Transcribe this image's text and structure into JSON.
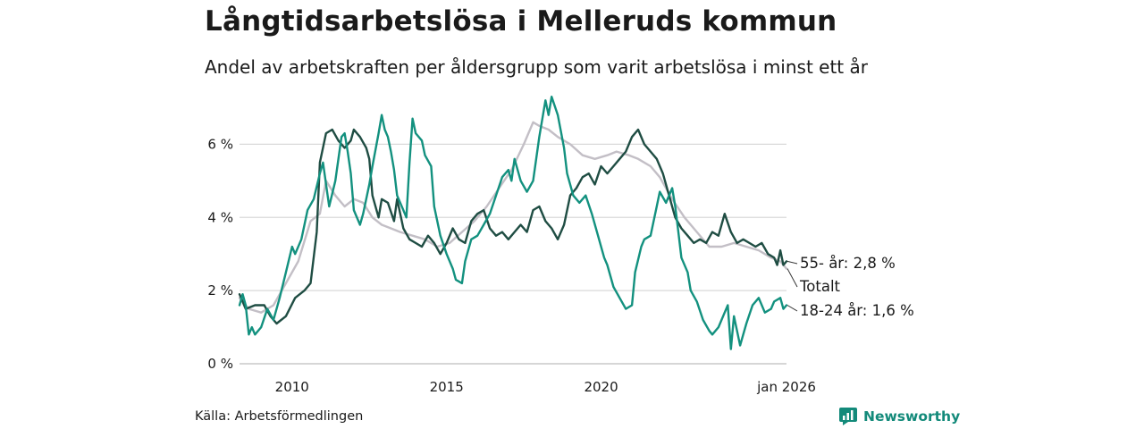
{
  "header": {
    "title": "Långtidsarbetslösa i Melleruds kommun",
    "subtitle": "Andel av arbetskraften per åldersgrupp som varit arbetslösa i minst ett år"
  },
  "footer": {
    "source": "Källa: Arbetsförmedlingen",
    "brand": "Newsworthy"
  },
  "colors": {
    "totalt": "#c3bfc6",
    "age_55": "#1f4d43",
    "age_18_24": "#13917f",
    "grid": "#d9d9d9",
    "brand": "#138a7a"
  },
  "chart_data": {
    "type": "line",
    "title": "Långtidsarbetslösa i Melleruds kommun",
    "xlabel": "",
    "ylabel": "",
    "xlim": [
      2008.3,
      2026.0
    ],
    "ylim": [
      0,
      7.5
    ],
    "grid": true,
    "y_ticks": [
      {
        "value": 0,
        "label": "0 %"
      },
      {
        "value": 2,
        "label": "2 %"
      },
      {
        "value": 4,
        "label": "4 %"
      },
      {
        "value": 6,
        "label": "6 %"
      }
    ],
    "x_ticks": [
      {
        "value": 2010,
        "label": "2010"
      },
      {
        "value": 2015,
        "label": "2015"
      },
      {
        "value": 2020,
        "label": "2020"
      },
      {
        "value": 2026,
        "label": "jan 2026"
      }
    ],
    "series": [
      {
        "name": "Totalt",
        "end_label": "Totalt",
        "color_key": "totalt",
        "points": [
          [
            2008.3,
            1.8
          ],
          [
            2008.6,
            1.5
          ],
          [
            2009.0,
            1.4
          ],
          [
            2009.4,
            1.6
          ],
          [
            2009.8,
            2.2
          ],
          [
            2010.2,
            2.8
          ],
          [
            2010.6,
            3.9
          ],
          [
            2010.9,
            4.1
          ],
          [
            2011.1,
            5.0
          ],
          [
            2011.4,
            4.6
          ],
          [
            2011.7,
            4.3
          ],
          [
            2012.0,
            4.5
          ],
          [
            2012.3,
            4.4
          ],
          [
            2012.6,
            4.0
          ],
          [
            2012.9,
            3.8
          ],
          [
            2013.2,
            3.7
          ],
          [
            2013.5,
            3.6
          ],
          [
            2013.9,
            3.5
          ],
          [
            2014.3,
            3.4
          ],
          [
            2014.7,
            3.2
          ],
          [
            2015.1,
            3.3
          ],
          [
            2015.5,
            3.6
          ],
          [
            2015.9,
            3.9
          ],
          [
            2016.3,
            4.3
          ],
          [
            2016.7,
            4.8
          ],
          [
            2017.1,
            5.3
          ],
          [
            2017.5,
            6.0
          ],
          [
            2017.8,
            6.6
          ],
          [
            2018.0,
            6.5
          ],
          [
            2018.3,
            6.4
          ],
          [
            2018.6,
            6.2
          ],
          [
            2019.0,
            6.0
          ],
          [
            2019.4,
            5.7
          ],
          [
            2019.8,
            5.6
          ],
          [
            2020.2,
            5.7
          ],
          [
            2020.5,
            5.8
          ],
          [
            2020.9,
            5.7
          ],
          [
            2021.2,
            5.6
          ],
          [
            2021.6,
            5.4
          ],
          [
            2021.9,
            5.1
          ],
          [
            2022.3,
            4.5
          ],
          [
            2022.7,
            4.0
          ],
          [
            2023.1,
            3.6
          ],
          [
            2023.5,
            3.2
          ],
          [
            2023.9,
            3.2
          ],
          [
            2024.3,
            3.3
          ],
          [
            2024.7,
            3.2
          ],
          [
            2025.1,
            3.1
          ],
          [
            2025.5,
            2.9
          ],
          [
            2025.8,
            2.8
          ],
          [
            2026.0,
            2.6
          ]
        ]
      },
      {
        "name": "55- år",
        "end_label": "55- år: 2,8 %",
        "color_key": "age_55",
        "points": [
          [
            2008.3,
            1.9
          ],
          [
            2008.5,
            1.5
          ],
          [
            2008.8,
            1.6
          ],
          [
            2009.1,
            1.6
          ],
          [
            2009.3,
            1.3
          ],
          [
            2009.5,
            1.1
          ],
          [
            2009.8,
            1.3
          ],
          [
            2010.1,
            1.8
          ],
          [
            2010.4,
            2.0
          ],
          [
            2010.6,
            2.2
          ],
          [
            2010.8,
            3.6
          ],
          [
            2010.9,
            5.5
          ],
          [
            2011.1,
            6.3
          ],
          [
            2011.3,
            6.4
          ],
          [
            2011.5,
            6.1
          ],
          [
            2011.7,
            5.9
          ],
          [
            2011.9,
            6.1
          ],
          [
            2012.0,
            6.4
          ],
          [
            2012.2,
            6.2
          ],
          [
            2012.4,
            5.9
          ],
          [
            2012.5,
            5.6
          ],
          [
            2012.6,
            4.6
          ],
          [
            2012.8,
            4.0
          ],
          [
            2012.9,
            4.5
          ],
          [
            2013.1,
            4.4
          ],
          [
            2013.3,
            3.9
          ],
          [
            2013.4,
            4.5
          ],
          [
            2013.6,
            3.7
          ],
          [
            2013.8,
            3.4
          ],
          [
            2014.0,
            3.3
          ],
          [
            2014.2,
            3.2
          ],
          [
            2014.4,
            3.5
          ],
          [
            2014.6,
            3.3
          ],
          [
            2014.8,
            3.0
          ],
          [
            2015.0,
            3.3
          ],
          [
            2015.2,
            3.7
          ],
          [
            2015.4,
            3.4
          ],
          [
            2015.6,
            3.3
          ],
          [
            2015.8,
            3.9
          ],
          [
            2016.0,
            4.1
          ],
          [
            2016.2,
            4.2
          ],
          [
            2016.4,
            3.7
          ],
          [
            2016.6,
            3.5
          ],
          [
            2016.8,
            3.6
          ],
          [
            2017.0,
            3.4
          ],
          [
            2017.2,
            3.6
          ],
          [
            2017.4,
            3.8
          ],
          [
            2017.6,
            3.6
          ],
          [
            2017.8,
            4.2
          ],
          [
            2018.0,
            4.3
          ],
          [
            2018.2,
            3.9
          ],
          [
            2018.4,
            3.7
          ],
          [
            2018.6,
            3.4
          ],
          [
            2018.8,
            3.8
          ],
          [
            2019.0,
            4.6
          ],
          [
            2019.2,
            4.8
          ],
          [
            2019.4,
            5.1
          ],
          [
            2019.6,
            5.2
          ],
          [
            2019.8,
            4.9
          ],
          [
            2020.0,
            5.4
          ],
          [
            2020.2,
            5.2
          ],
          [
            2020.4,
            5.4
          ],
          [
            2020.6,
            5.6
          ],
          [
            2020.8,
            5.8
          ],
          [
            2021.0,
            6.2
          ],
          [
            2021.2,
            6.4
          ],
          [
            2021.4,
            6.0
          ],
          [
            2021.6,
            5.8
          ],
          [
            2021.8,
            5.6
          ],
          [
            2022.0,
            5.2
          ],
          [
            2022.2,
            4.6
          ],
          [
            2022.4,
            4.0
          ],
          [
            2022.6,
            3.7
          ],
          [
            2022.8,
            3.5
          ],
          [
            2023.0,
            3.3
          ],
          [
            2023.2,
            3.4
          ],
          [
            2023.4,
            3.3
          ],
          [
            2023.6,
            3.6
          ],
          [
            2023.8,
            3.5
          ],
          [
            2024.0,
            4.1
          ],
          [
            2024.2,
            3.6
          ],
          [
            2024.4,
            3.3
          ],
          [
            2024.6,
            3.4
          ],
          [
            2024.8,
            3.3
          ],
          [
            2025.0,
            3.2
          ],
          [
            2025.2,
            3.3
          ],
          [
            2025.4,
            3.0
          ],
          [
            2025.6,
            2.9
          ],
          [
            2025.7,
            2.7
          ],
          [
            2025.8,
            3.1
          ],
          [
            2025.9,
            2.7
          ],
          [
            2026.0,
            2.8
          ]
        ]
      },
      {
        "name": "18-24 år",
        "end_label": "18-24 år: 1,6 %",
        "color_key": "age_18_24",
        "points": [
          [
            2008.3,
            1.6
          ],
          [
            2008.4,
            1.9
          ],
          [
            2008.5,
            1.6
          ],
          [
            2008.6,
            0.8
          ],
          [
            2008.7,
            1.0
          ],
          [
            2008.8,
            0.8
          ],
          [
            2009.0,
            1.0
          ],
          [
            2009.2,
            1.5
          ],
          [
            2009.4,
            1.2
          ],
          [
            2009.6,
            1.8
          ],
          [
            2009.8,
            2.5
          ],
          [
            2010.0,
            3.2
          ],
          [
            2010.1,
            3.0
          ],
          [
            2010.3,
            3.4
          ],
          [
            2010.5,
            4.2
          ],
          [
            2010.7,
            4.5
          ],
          [
            2010.9,
            5.2
          ],
          [
            2011.0,
            5.5
          ],
          [
            2011.2,
            4.3
          ],
          [
            2011.4,
            5.0
          ],
          [
            2011.6,
            6.2
          ],
          [
            2011.7,
            6.3
          ],
          [
            2011.8,
            5.8
          ],
          [
            2011.9,
            5.2
          ],
          [
            2012.0,
            4.2
          ],
          [
            2012.2,
            3.8
          ],
          [
            2012.3,
            4.1
          ],
          [
            2012.5,
            4.9
          ],
          [
            2012.6,
            5.4
          ],
          [
            2012.8,
            6.3
          ],
          [
            2012.9,
            6.8
          ],
          [
            2013.0,
            6.4
          ],
          [
            2013.1,
            6.2
          ],
          [
            2013.2,
            5.8
          ],
          [
            2013.3,
            5.3
          ],
          [
            2013.4,
            4.6
          ],
          [
            2013.6,
            4.2
          ],
          [
            2013.7,
            4.0
          ],
          [
            2013.8,
            5.5
          ],
          [
            2013.9,
            6.7
          ],
          [
            2014.0,
            6.3
          ],
          [
            2014.2,
            6.1
          ],
          [
            2014.3,
            5.7
          ],
          [
            2014.5,
            5.4
          ],
          [
            2014.6,
            4.3
          ],
          [
            2014.8,
            3.5
          ],
          [
            2015.0,
            3.0
          ],
          [
            2015.2,
            2.6
          ],
          [
            2015.3,
            2.3
          ],
          [
            2015.5,
            2.2
          ],
          [
            2015.6,
            2.8
          ],
          [
            2015.8,
            3.4
          ],
          [
            2016.0,
            3.5
          ],
          [
            2016.2,
            3.8
          ],
          [
            2016.4,
            4.1
          ],
          [
            2016.6,
            4.6
          ],
          [
            2016.8,
            5.1
          ],
          [
            2017.0,
            5.3
          ],
          [
            2017.1,
            5.0
          ],
          [
            2017.2,
            5.6
          ],
          [
            2017.4,
            5.0
          ],
          [
            2017.6,
            4.7
          ],
          [
            2017.8,
            5.0
          ],
          [
            2018.0,
            6.2
          ],
          [
            2018.2,
            7.2
          ],
          [
            2018.3,
            6.8
          ],
          [
            2018.4,
            7.3
          ],
          [
            2018.6,
            6.8
          ],
          [
            2018.8,
            5.9
          ],
          [
            2018.9,
            5.2
          ],
          [
            2019.1,
            4.6
          ],
          [
            2019.3,
            4.4
          ],
          [
            2019.5,
            4.6
          ],
          [
            2019.7,
            4.1
          ],
          [
            2019.9,
            3.5
          ],
          [
            2020.1,
            2.9
          ],
          [
            2020.2,
            2.7
          ],
          [
            2020.4,
            2.1
          ],
          [
            2020.6,
            1.8
          ],
          [
            2020.8,
            1.5
          ],
          [
            2021.0,
            1.6
          ],
          [
            2021.1,
            2.5
          ],
          [
            2021.3,
            3.2
          ],
          [
            2021.4,
            3.4
          ],
          [
            2021.6,
            3.5
          ],
          [
            2021.8,
            4.3
          ],
          [
            2021.9,
            4.7
          ],
          [
            2022.1,
            4.4
          ],
          [
            2022.3,
            4.8
          ],
          [
            2022.4,
            4.3
          ],
          [
            2022.5,
            3.6
          ],
          [
            2022.6,
            2.9
          ],
          [
            2022.8,
            2.5
          ],
          [
            2022.9,
            2.0
          ],
          [
            2023.1,
            1.7
          ],
          [
            2023.3,
            1.2
          ],
          [
            2023.5,
            0.9
          ],
          [
            2023.6,
            0.8
          ],
          [
            2023.8,
            1.0
          ],
          [
            2024.0,
            1.4
          ],
          [
            2024.1,
            1.6
          ],
          [
            2024.2,
            0.4
          ],
          [
            2024.3,
            1.3
          ],
          [
            2024.5,
            0.5
          ],
          [
            2024.7,
            1.1
          ],
          [
            2024.9,
            1.6
          ],
          [
            2025.1,
            1.8
          ],
          [
            2025.3,
            1.4
          ],
          [
            2025.5,
            1.5
          ],
          [
            2025.6,
            1.7
          ],
          [
            2025.8,
            1.8
          ],
          [
            2025.9,
            1.5
          ],
          [
            2026.0,
            1.6
          ]
        ]
      }
    ]
  }
}
